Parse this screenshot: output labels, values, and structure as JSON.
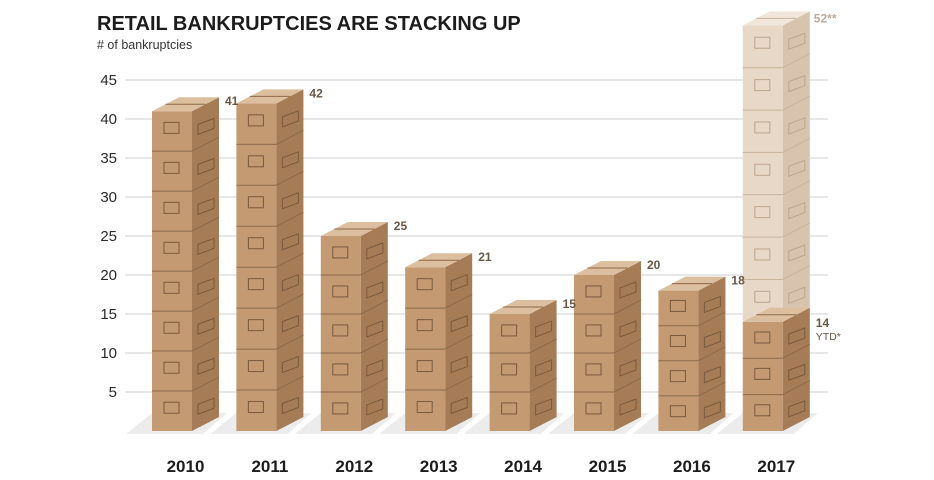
{
  "chart_data": {
    "type": "bar",
    "title": "RETAIL BANKRUPTCIES ARE STACKING UP",
    "ylabel": "# of bankruptcies",
    "xlabel": "",
    "categories": [
      "2010",
      "2011",
      "2012",
      "2013",
      "2014",
      "2015",
      "2016",
      "2017"
    ],
    "values": [
      41,
      42,
      25,
      21,
      15,
      20,
      18,
      14
    ],
    "value_labels": [
      "41",
      "42",
      "25",
      "21",
      "15",
      "20",
      "18",
      "14"
    ],
    "projected": {
      "category": "2017",
      "value": 52,
      "label": "52**"
    },
    "ytd_note": "YTD*",
    "yticks": [
      5,
      10,
      15,
      20,
      25,
      30,
      35,
      40,
      45
    ],
    "ylim": [
      0,
      45
    ],
    "grid": true,
    "colors": {
      "box_front": "#c39a72",
      "box_side": "#a57c56",
      "box_top": "#dcbf9f",
      "box_front_projected": "#e7d8c8",
      "box_side_projected": "#d8c4ae",
      "box_top_projected": "#f1e6da",
      "grid": "#cfcfcf",
      "shadow": "#ececec"
    }
  }
}
